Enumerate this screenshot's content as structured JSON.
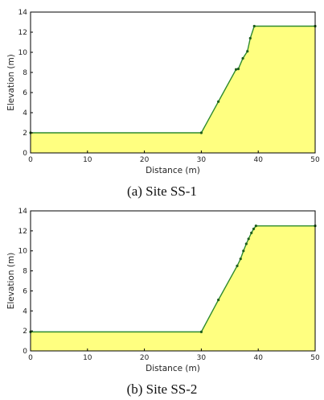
{
  "chart_data": [
    {
      "type": "area",
      "caption": "(a) Site SS-1",
      "xlabel": "Distance (m)",
      "ylabel": "Elevation (m)",
      "xlim": [
        0,
        50
      ],
      "ylim": [
        0,
        14
      ],
      "xticks": [
        0,
        10,
        20,
        30,
        40,
        50
      ],
      "yticks": [
        0,
        2,
        4,
        6,
        8,
        10,
        12,
        14
      ],
      "grid": false,
      "fill_color": "#ffff80",
      "line_color": "#2e8b2e",
      "profile": [
        {
          "x": 0,
          "y": 2.0
        },
        {
          "x": 30,
          "y": 2.0
        },
        {
          "x": 33,
          "y": 5.1
        },
        {
          "x": 36.1,
          "y": 8.3
        },
        {
          "x": 36.5,
          "y": 8.35
        },
        {
          "x": 37.3,
          "y": 9.4
        },
        {
          "x": 38.1,
          "y": 10.1
        },
        {
          "x": 38.6,
          "y": 11.4
        },
        {
          "x": 39.3,
          "y": 12.6
        },
        {
          "x": 50,
          "y": 12.6
        },
        {
          "x": 50,
          "y": 0
        }
      ]
    },
    {
      "type": "area",
      "caption": "(b) Site SS-2",
      "xlabel": "Distance (m)",
      "ylabel": "Elevation (m)",
      "xlim": [
        0,
        50
      ],
      "ylim": [
        0,
        14
      ],
      "xticks": [
        0,
        10,
        20,
        30,
        40,
        50
      ],
      "yticks": [
        0,
        2,
        4,
        6,
        8,
        10,
        12,
        14
      ],
      "grid": false,
      "fill_color": "#ffff80",
      "line_color": "#2e8b2e",
      "profile": [
        {
          "x": 0,
          "y": 1.9
        },
        {
          "x": 30,
          "y": 1.9
        },
        {
          "x": 33,
          "y": 5.1
        },
        {
          "x": 36.3,
          "y": 8.5
        },
        {
          "x": 36.9,
          "y": 9.2
        },
        {
          "x": 37.4,
          "y": 10.0
        },
        {
          "x": 37.9,
          "y": 10.7
        },
        {
          "x": 38.3,
          "y": 11.2
        },
        {
          "x": 38.8,
          "y": 11.8
        },
        {
          "x": 39.2,
          "y": 12.2
        },
        {
          "x": 39.6,
          "y": 12.5
        },
        {
          "x": 50,
          "y": 12.5
        },
        {
          "x": 50,
          "y": 0
        }
      ]
    }
  ]
}
